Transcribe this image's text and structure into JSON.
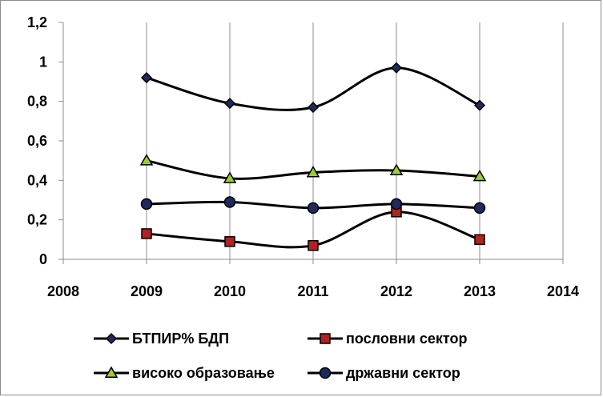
{
  "chart_data": {
    "type": "line",
    "x": [
      2009,
      2010,
      2011,
      2012,
      2013
    ],
    "xlim": [
      2008,
      2014
    ],
    "ylim": [
      0,
      1.2
    ],
    "x_ticks": [
      "2008",
      "2009",
      "2010",
      "2011",
      "2012",
      "2013",
      "2014"
    ],
    "y_ticks": [
      "0",
      "0,2",
      "0,4",
      "0,6",
      "0,8",
      "1",
      "1,2"
    ],
    "grid": "vertical",
    "legend_position": "bottom",
    "series": [
      {
        "name": "БТПИР% БДП",
        "marker": "diamond",
        "color": "#1f2a5c",
        "values": [
          0.92,
          0.79,
          0.77,
          0.97,
          0.78
        ]
      },
      {
        "name": "пословни сектор",
        "marker": "square",
        "color": "#b22222",
        "values": [
          0.13,
          0.09,
          0.07,
          0.24,
          0.1
        ]
      },
      {
        "name": "високо образовање",
        "marker": "triangle",
        "color": "#9acd32",
        "values": [
          0.5,
          0.41,
          0.44,
          0.45,
          0.42
        ]
      },
      {
        "name": "државни сектор",
        "marker": "circle",
        "color": "#1f2a5c",
        "values": [
          0.28,
          0.29,
          0.26,
          0.28,
          0.26
        ]
      }
    ]
  }
}
